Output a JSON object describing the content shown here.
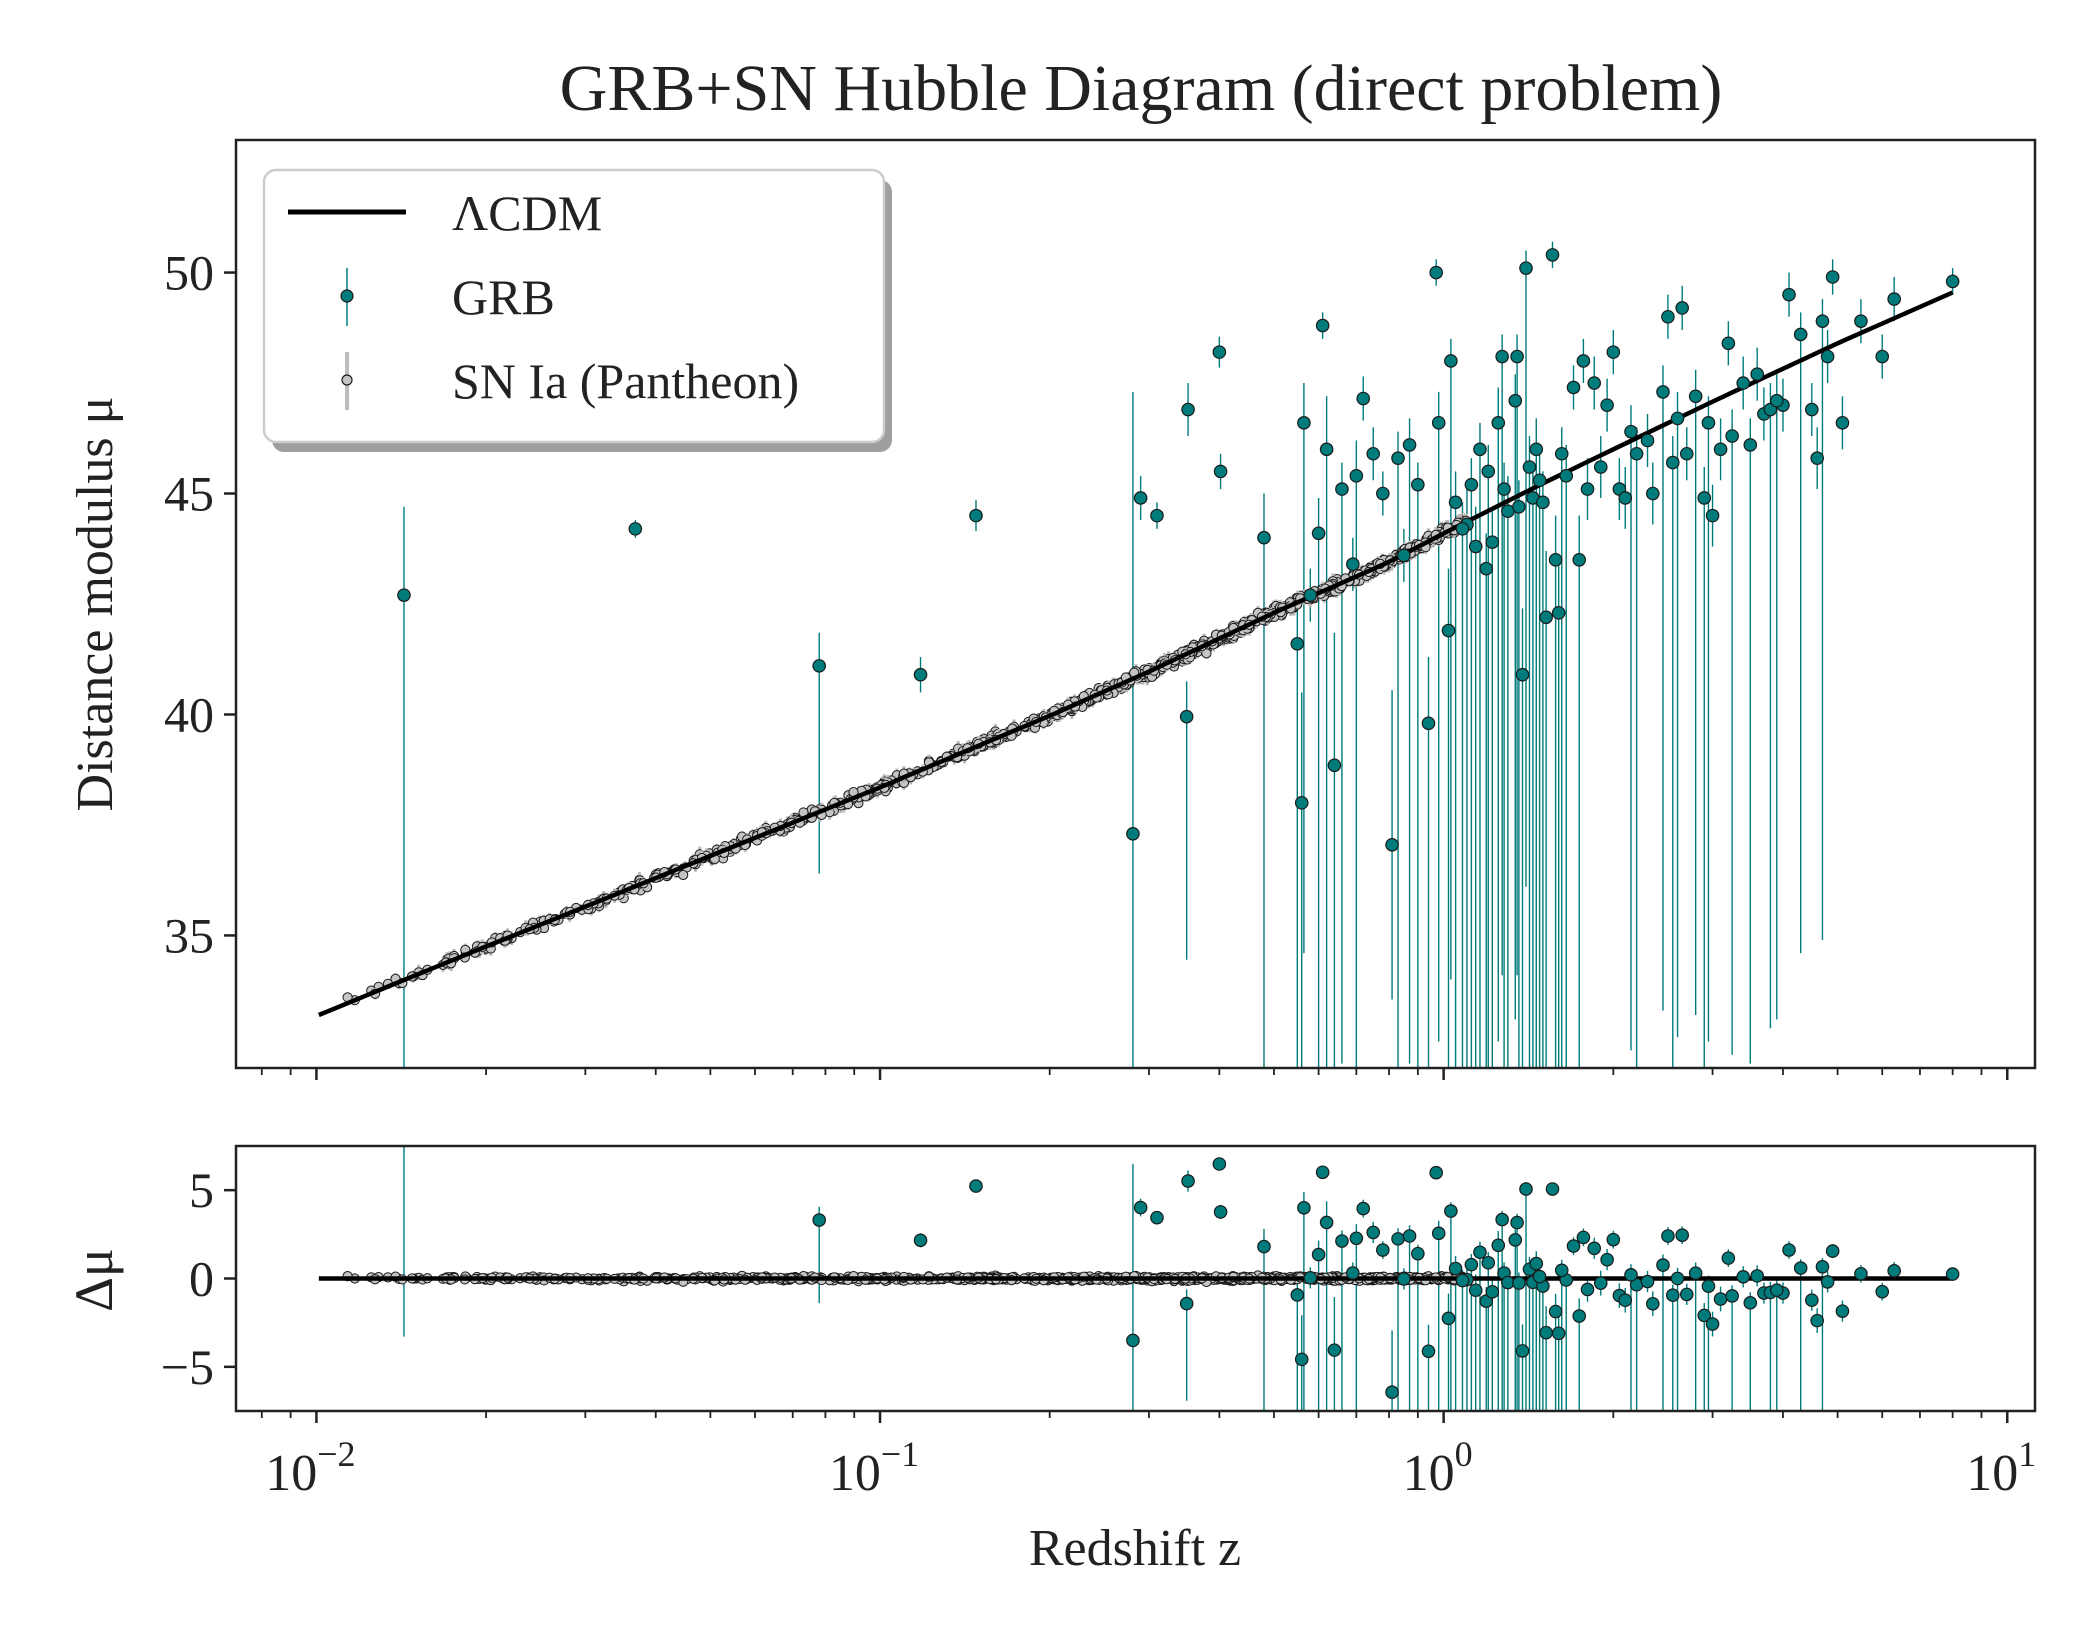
{
  "title": "GRB+SN Hubble Diagram (direct problem)",
  "colors": {
    "grb": "#007b7b",
    "sn_fill": "#c4c4c4",
    "sn_err": "#bdbdbd",
    "model": "#000000",
    "frame": "#222222"
  },
  "chart_data": [
    {
      "type": "scatter",
      "panel": "main",
      "title": "GRB+SN Hubble Diagram (direct problem)",
      "xlabel": "",
      "ylabel": "Distance modulus μ",
      "xscale": "log",
      "xlim": [
        0.0072,
        11.2
      ],
      "ylim": [
        32,
        53
      ],
      "yticks": [
        35,
        40,
        45,
        50
      ],
      "ytick_labels": [
        "35",
        "40",
        "45",
        "50"
      ],
      "legend": {
        "position": "top-left",
        "entries": [
          {
            "label": "ΛCDM",
            "kind": "line"
          },
          {
            "label": "GRB",
            "kind": "errorbar-point"
          },
          {
            "label": "SN Ia (Pantheon)",
            "kind": "errorbar-point"
          }
        ]
      },
      "series": [
        {
          "name": "ΛCDM",
          "kind": "model-line",
          "x": [
            0.0101,
            0.015,
            0.02,
            0.03,
            0.05,
            0.08,
            0.1,
            0.15,
            0.2,
            0.3,
            0.5,
            0.8,
            1.0,
            1.5,
            2.0,
            3.0,
            5.0,
            8.0
          ],
          "y": [
            33.2,
            34.1,
            34.75,
            35.65,
            36.8,
            37.85,
            38.35,
            39.3,
            39.97,
            40.97,
            42.3,
            43.45,
            44.1,
            45.23,
            46.0,
            47.08,
            48.4,
            49.55
          ]
        },
        {
          "name": "SN Ia (Pantheon)",
          "kind": "scatter-generated",
          "count": 1048,
          "zmin": 0.0101,
          "zmax": 1.1,
          "scatter_mag": 0.15,
          "err_mag": 0.12
        },
        {
          "name": "GRB",
          "kind": "scatter",
          "x": [
            0.0143,
            0.0368,
            0.078,
            0.118,
            0.148,
            0.281,
            0.29,
            0.31,
            0.35,
            0.352,
            0.402,
            0.4,
            0.48,
            0.55,
            0.56,
            0.565,
            0.6,
            0.61,
            0.62,
            0.64,
            0.66,
            0.7,
            0.72,
            0.75,
            0.78,
            0.81,
            0.83,
            0.87,
            0.9,
            0.94,
            0.97,
            0.98,
            1.02,
            1.03,
            1.05,
            1.1,
            1.14,
            1.16,
            1.19,
            1.2,
            1.25,
            1.27,
            1.28,
            1.3,
            1.34,
            1.35,
            1.38,
            1.4,
            1.42,
            1.44,
            1.46,
            1.5,
            1.52,
            1.56,
            1.58,
            1.6,
            1.65,
            1.7,
            1.74,
            1.77,
            1.8,
            1.85,
            1.9,
            1.95,
            2.0,
            2.05,
            2.1,
            2.2,
            2.3,
            2.35,
            2.45,
            2.5,
            2.6,
            2.65,
            2.7,
            2.8,
            2.9,
            3.0,
            3.1,
            3.2,
            3.4,
            3.5,
            3.6,
            3.7,
            3.8,
            4.0,
            4.1,
            4.3,
            4.5,
            4.6,
            4.7,
            4.8,
            4.9,
            5.1,
            5.5,
            6.0,
            6.3,
            8.0,
            1.12,
            1.22,
            1.36,
            1.48,
            2.15,
            2.55,
            3.25,
            3.9,
            0.69,
            1.08,
            1.62,
            2.95,
            0.58,
            0.85
          ],
          "y": [
            42.7,
            44.2,
            41.1,
            40.9,
            44.5,
            37.3,
            44.9,
            44.5,
            39.95,
            46.9,
            45.5,
            48.2,
            44.0,
            41.6,
            38.0,
            46.6,
            44.1,
            48.8,
            46.0,
            38.85,
            45.1,
            45.4,
            47.15,
            45.9,
            45.0,
            37.05,
            45.8,
            46.1,
            45.2,
            39.8,
            50.0,
            46.6,
            41.9,
            48.0,
            44.8,
            44.3,
            43.8,
            46.0,
            43.3,
            45.5,
            46.6,
            48.1,
            45.1,
            44.6,
            47.1,
            48.1,
            40.9,
            50.1,
            45.6,
            44.9,
            46.0,
            44.8,
            42.2,
            50.4,
            43.5,
            42.3,
            45.4,
            47.4,
            43.5,
            48.0,
            45.1,
            47.5,
            45.6,
            47.0,
            48.2,
            45.1,
            44.9,
            45.9,
            46.2,
            45.0,
            47.3,
            49.0,
            46.7,
            49.2,
            45.9,
            47.2,
            44.9,
            44.5,
            46.0,
            48.4,
            47.5,
            46.1,
            47.7,
            46.8,
            46.9,
            47.0,
            49.5,
            48.6,
            46.9,
            45.8,
            48.9,
            48.1,
            49.9,
            46.6,
            48.9,
            48.1,
            49.4,
            49.8,
            45.2,
            43.9,
            44.7,
            45.3,
            46.4,
            45.7,
            46.3,
            47.1,
            43.4,
            44.2,
            45.9,
            46.6,
            42.7,
            43.6
          ],
          "err_up": [
            2.0,
            0.2,
            0.75,
            0.4,
            0.35,
            10.0,
            0.5,
            0.3,
            0.8,
            0.6,
            0.4,
            0.35,
            1.0,
            1.2,
            2.5,
            0.9,
            0.8,
            0.3,
            1.2,
            3.0,
            0.6,
            0.8,
            0.5,
            0.6,
            0.5,
            3.5,
            0.6,
            0.6,
            0.5,
            1.5,
            0.3,
            0.7,
            1.4,
            0.5,
            0.7,
            0.8,
            0.9,
            0.6,
            0.8,
            0.6,
            0.8,
            0.5,
            0.6,
            0.8,
            0.6,
            0.5,
            1.5,
            0.4,
            0.7,
            0.6,
            0.7,
            0.7,
            1.5,
            0.3,
            1.0,
            1.3,
            0.7,
            0.5,
            1.0,
            0.5,
            0.7,
            0.6,
            0.7,
            0.6,
            0.5,
            0.7,
            0.7,
            0.6,
            0.6,
            0.7,
            0.6,
            0.5,
            0.6,
            0.5,
            0.6,
            0.6,
            0.7,
            0.7,
            0.7,
            0.5,
            0.6,
            0.6,
            0.6,
            0.6,
            0.6,
            0.6,
            0.5,
            0.5,
            0.6,
            0.7,
            0.5,
            0.6,
            0.4,
            0.6,
            0.5,
            0.5,
            0.5,
            0.3,
            0.6,
            0.7,
            0.6,
            0.6,
            0.6,
            0.6,
            0.6,
            0.6,
            0.6,
            0.6,
            0.6,
            0.6,
            0.6,
            0.6
          ],
          "err_down": [
            12.0,
            0.2,
            4.7,
            0.4,
            0.35,
            10.0,
            0.5,
            0.3,
            5.5,
            0.6,
            0.4,
            0.35,
            15.0,
            12.0,
            10.0,
            12.0,
            14.0,
            0.3,
            14.0,
            10.0,
            13.0,
            14.0,
            0.5,
            0.6,
            0.5,
            3.5,
            14.0,
            14.0,
            14.0,
            10.0,
            0.3,
            14.0,
            12.0,
            14.0,
            14.0,
            14.0,
            14.0,
            14.0,
            14.0,
            14.0,
            14.0,
            14.0,
            14.0,
            14.0,
            14.0,
            14.0,
            14.0,
            14.0,
            14.0,
            14.0,
            14.0,
            14.0,
            14.0,
            0.3,
            14.0,
            14.0,
            14.0,
            0.5,
            14.0,
            0.5,
            0.7,
            0.6,
            0.7,
            0.6,
            0.5,
            0.7,
            0.7,
            14.0,
            0.6,
            0.7,
            14.0,
            0.5,
            14.0,
            0.5,
            0.6,
            14.0,
            14.0,
            0.7,
            0.7,
            0.5,
            0.6,
            14.0,
            0.6,
            0.6,
            14.0,
            0.6,
            0.5,
            14.0,
            0.6,
            0.7,
            14.0,
            0.6,
            0.4,
            0.6,
            0.5,
            0.5,
            0.5,
            0.3,
            14.0,
            14.0,
            14.0,
            14.0,
            14.0,
            14.0,
            14.0,
            14.0,
            0.6,
            14.0,
            14.0,
            14.0,
            0.6,
            0.6
          ]
        }
      ]
    },
    {
      "type": "scatter",
      "panel": "residual",
      "xlabel": "Redshift z",
      "ylabel": "Δμ",
      "xscale": "log",
      "xlim": [
        0.0072,
        11.2
      ],
      "ylim": [
        -7.5,
        7.5
      ],
      "yticks": [
        -5,
        0,
        5
      ],
      "ytick_labels": [
        "−5",
        "0",
        "5"
      ],
      "xticks": [
        0.01,
        0.1,
        1,
        10
      ],
      "xtick_labels": [
        {
          "base": "10",
          "exp": "−2"
        },
        {
          "base": "10",
          "exp": "−1"
        },
        {
          "base": "10",
          "exp": "0"
        },
        {
          "base": "10",
          "exp": "1"
        }
      ],
      "series": [
        {
          "name": "ΛCDM",
          "kind": "zero-line",
          "x": [
            0.0101,
            8.0
          ],
          "y": [
            0,
            0
          ]
        },
        {
          "name": "SN Ia (Pantheon)",
          "kind": "residual-of-main"
        },
        {
          "name": "GRB",
          "kind": "residual-of-main"
        }
      ]
    }
  ]
}
